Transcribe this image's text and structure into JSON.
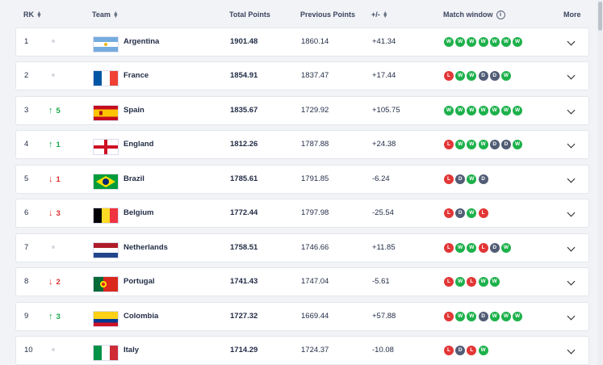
{
  "header": {
    "rank": "RK",
    "team": "Team",
    "total": "Total Points",
    "previous": "Previous Points",
    "diff": "+/-",
    "match_window": "Match window",
    "more": "More"
  },
  "rows": [
    {
      "rank": "1",
      "move_dir": "none",
      "move": "",
      "team": "Argentina",
      "flag": "argentina",
      "total": "1901.48",
      "previous": "1860.14",
      "diff": "+41.34",
      "results": [
        "W",
        "W",
        "W",
        "W",
        "W",
        "W",
        "W"
      ]
    },
    {
      "rank": "2",
      "move_dir": "none",
      "move": "",
      "team": "France",
      "flag": "france",
      "total": "1854.91",
      "previous": "1837.47",
      "diff": "+17.44",
      "results": [
        "L",
        "W",
        "W",
        "D",
        "D",
        "W"
      ]
    },
    {
      "rank": "3",
      "move_dir": "up",
      "move": "5",
      "team": "Spain",
      "flag": "spain",
      "total": "1835.67",
      "previous": "1729.92",
      "diff": "+105.75",
      "results": [
        "W",
        "W",
        "W",
        "W",
        "W",
        "W",
        "W"
      ]
    },
    {
      "rank": "4",
      "move_dir": "up",
      "move": "1",
      "team": "England",
      "flag": "england",
      "total": "1812.26",
      "previous": "1787.88",
      "diff": "+24.38",
      "results": [
        "L",
        "W",
        "W",
        "W",
        "D",
        "D",
        "W"
      ]
    },
    {
      "rank": "5",
      "move_dir": "down",
      "move": "1",
      "team": "Brazil",
      "flag": "brazil",
      "total": "1785.61",
      "previous": "1791.85",
      "diff": "-6.24",
      "results": [
        "L",
        "D",
        "W",
        "D"
      ]
    },
    {
      "rank": "6",
      "move_dir": "down",
      "move": "3",
      "team": "Belgium",
      "flag": "belgium",
      "total": "1772.44",
      "previous": "1797.98",
      "diff": "-25.54",
      "results": [
        "L",
        "D",
        "W",
        "L"
      ]
    },
    {
      "rank": "7",
      "move_dir": "none",
      "move": "",
      "team": "Netherlands",
      "flag": "netherlands",
      "total": "1758.51",
      "previous": "1746.66",
      "diff": "+11.85",
      "results": [
        "L",
        "W",
        "W",
        "L",
        "D",
        "W"
      ]
    },
    {
      "rank": "8",
      "move_dir": "down",
      "move": "2",
      "team": "Portugal",
      "flag": "portugal",
      "total": "1741.43",
      "previous": "1747.04",
      "diff": "-5.61",
      "results": [
        "L",
        "W",
        "L",
        "W",
        "W"
      ]
    },
    {
      "rank": "9",
      "move_dir": "up",
      "move": "3",
      "team": "Colombia",
      "flag": "colombia",
      "total": "1727.32",
      "previous": "1669.44",
      "diff": "+57.88",
      "results": [
        "L",
        "W",
        "W",
        "D",
        "W",
        "W",
        "W"
      ]
    },
    {
      "rank": "10",
      "move_dir": "none",
      "move": "",
      "team": "Italy",
      "flag": "italy",
      "total": "1714.29",
      "previous": "1724.37",
      "diff": "-10.08",
      "results": [
        "L",
        "D",
        "L",
        "W"
      ]
    }
  ],
  "colors": {
    "win": "#1db14b",
    "loss": "#e23636",
    "draw": "#515d75",
    "up": "#1aa84a",
    "down": "#e02d2d"
  },
  "icons": {
    "sort": "sort-icon",
    "info": "info-icon",
    "expand": "chevron-down-icon",
    "up": "arrow-up-icon",
    "down": "arrow-down-icon"
  }
}
